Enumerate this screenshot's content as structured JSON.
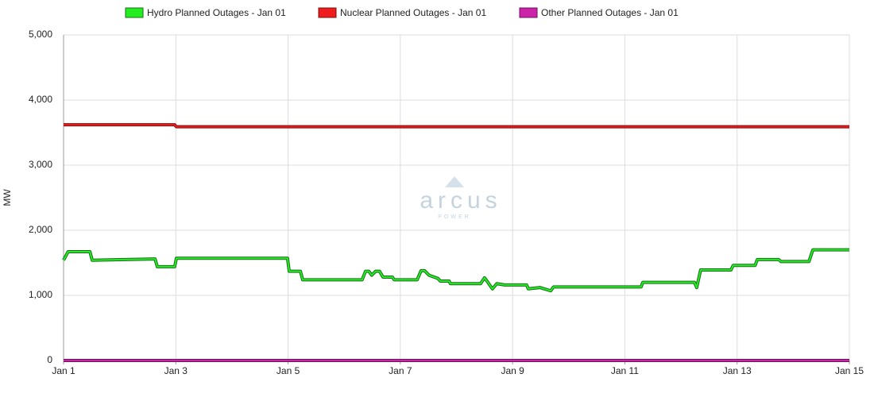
{
  "chart_data": {
    "type": "line",
    "y_label": "MW",
    "watermark": "arcus",
    "watermark_sub": "POWER",
    "legend": "top",
    "grid": true,
    "xlim": [
      1,
      15
    ],
    "xticks": [
      {
        "value": 1,
        "label": "Jan 1"
      },
      {
        "value": 3,
        "label": "Jan 3"
      },
      {
        "value": 5,
        "label": "Jan 5"
      },
      {
        "value": 7,
        "label": "Jan 7"
      },
      {
        "value": 9,
        "label": "Jan 9"
      },
      {
        "value": 11,
        "label": "Jan 11"
      },
      {
        "value": 13,
        "label": "Jan 13"
      },
      {
        "value": 15,
        "label": "Jan 15"
      }
    ],
    "ylim": [
      0,
      5000
    ],
    "yticks": [
      0,
      {
        "value": 1000,
        "label": "1,000"
      },
      {
        "value": 2000,
        "label": "2,000"
      },
      {
        "value": 3000,
        "label": "3,000"
      },
      {
        "value": 4000,
        "label": "4,000"
      },
      {
        "value": 5000,
        "label": "5,000"
      }
    ],
    "x": [
      1.0,
      1.08,
      1.47,
      1.51,
      2.63,
      2.67,
      2.98,
      3.01,
      4.99,
      5.02,
      5.22,
      5.26,
      6.32,
      6.38,
      6.44,
      6.49,
      6.56,
      6.63,
      6.69,
      6.86,
      6.89,
      7.3,
      7.37,
      7.43,
      7.51,
      7.67,
      7.71,
      7.87,
      7.89,
      8.43,
      8.5,
      8.56,
      8.64,
      8.72,
      8.86,
      9.25,
      9.28,
      9.49,
      9.68,
      9.73,
      11.29,
      11.32,
      12.24,
      12.28,
      12.35,
      12.89,
      12.93,
      13.32,
      13.36,
      13.74,
      13.78,
      14.28,
      14.35,
      15.0
    ],
    "series": [
      {
        "name": "Hydro Planned Outages - Jan 01",
        "color": "#22ee22",
        "edge": "#1d6b1d",
        "values": [
          1540,
          1670,
          1670,
          1540,
          1560,
          1440,
          1440,
          1570,
          1570,
          1370,
          1370,
          1240,
          1240,
          1370,
          1370,
          1310,
          1370,
          1370,
          1280,
          1280,
          1240,
          1240,
          1380,
          1380,
          1310,
          1260,
          1220,
          1220,
          1180,
          1180,
          1270,
          1200,
          1100,
          1180,
          1160,
          1160,
          1100,
          1120,
          1070,
          1130,
          1130,
          1200,
          1200,
          1120,
          1390,
          1390,
          1460,
          1460,
          1550,
          1550,
          1520,
          1520,
          1700,
          1700
        ]
      },
      {
        "name": "Nuclear Planned Outages - Jan 01",
        "color": "#ee1c1c",
        "edge": "#7a1010",
        "values": [
          3620,
          3620,
          3620,
          3620,
          3620,
          3620,
          3620,
          3590,
          3590,
          3590,
          3590,
          3590,
          3590,
          3590,
          3590,
          3590,
          3590,
          3590,
          3590,
          3590,
          3590,
          3590,
          3590,
          3590,
          3590,
          3590,
          3590,
          3590,
          3590,
          3590,
          3590,
          3590,
          3590,
          3590,
          3590,
          3590,
          3590,
          3590,
          3590,
          3590,
          3590,
          3590,
          3590,
          3590,
          3590,
          3590,
          3590,
          3590,
          3590,
          3590,
          3590,
          3590,
          3590,
          3590
        ]
      },
      {
        "name": "Other Planned Outages - Jan 01",
        "color": "#cc22aa",
        "edge": "#6b1259",
        "values": [
          0,
          0,
          0,
          0,
          0,
          0,
          0,
          0,
          0,
          0,
          0,
          0,
          0,
          0,
          0,
          0,
          0,
          0,
          0,
          0,
          0,
          0,
          0,
          0,
          0,
          0,
          0,
          0,
          0,
          0,
          0,
          0,
          0,
          0,
          0,
          0,
          0,
          0,
          0,
          0,
          0,
          0,
          0,
          0,
          0,
          0,
          0,
          0,
          0,
          0,
          0,
          0,
          0,
          0
        ]
      }
    ]
  }
}
